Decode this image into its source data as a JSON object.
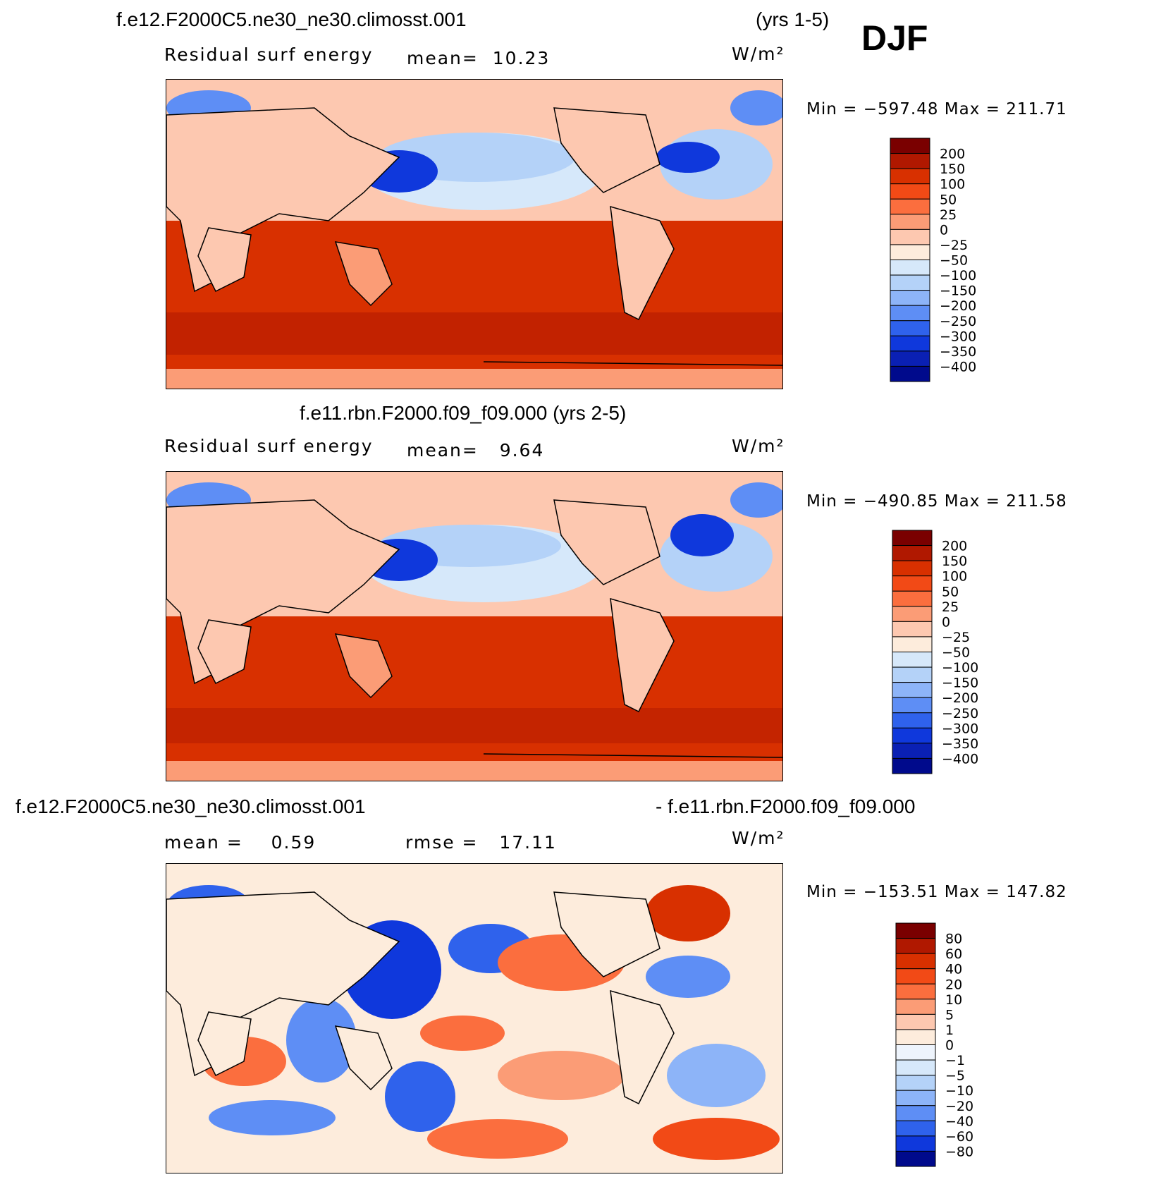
{
  "season": "DJF",
  "units": "W/m²",
  "panels": [
    {
      "header_left": "f.e12.F2000C5.ne30_ne30.climosst.001",
      "header_right": "(yrs 1-5)",
      "variable": "Residual surf energy",
      "mean_label": "mean=",
      "mean": "10.23",
      "min_label": "Min =",
      "min": "−597.48",
      "max_label": "Max =",
      "max": "211.71",
      "levels": [
        "200",
        "150",
        "100",
        "50",
        "25",
        "0",
        "−25",
        "−50",
        "−100",
        "−150",
        "−200",
        "−250",
        "−300",
        "−350",
        "−400"
      ]
    },
    {
      "header": "f.e11.rbn.F2000.f09_f09.000 (yrs 2-5)",
      "variable": "Residual surf energy",
      "mean_label": "mean=",
      "mean": "9.64",
      "min_label": "Min =",
      "min": "−490.85",
      "max_label": "Max =",
      "max": "211.58",
      "levels": [
        "200",
        "150",
        "100",
        "50",
        "25",
        "0",
        "−25",
        "−50",
        "−100",
        "−150",
        "−200",
        "−250",
        "−300",
        "−350",
        "−400"
      ]
    },
    {
      "header_left": "f.e12.F2000C5.ne30_ne30.climosst.001",
      "header_right": "- f.e11.rbn.F2000.f09_f09.000",
      "mean_label": "mean =",
      "mean": "0.59",
      "rmse_label": "rmse =",
      "rmse": "17.11",
      "min_label": "Min =",
      "min": "−153.51",
      "max_label": "Max =",
      "max": "147.82",
      "levels": [
        "80",
        "60",
        "40",
        "20",
        "10",
        "5",
        "1",
        "0",
        "−1",
        "−5",
        "−10",
        "−20",
        "−40",
        "−60",
        "−80"
      ]
    }
  ],
  "colors": {
    "abs_scale": [
      "#7a0000",
      "#b01800",
      "#d83000",
      "#f24a16",
      "#fb6e3e",
      "#fb9c76",
      "#fdc8b0",
      "#fdecdc",
      "#d6e8fa",
      "#b4d2f8",
      "#8db4f8",
      "#5e8ef5",
      "#2f62ec",
      "#0f38dc",
      "#0a20b4",
      "#000a8c"
    ],
    "diff_scale": [
      "#7a0000",
      "#b01800",
      "#d83000",
      "#f24a16",
      "#fb6e3e",
      "#fb9c76",
      "#fdc8b0",
      "#fdecdc",
      "#eef4fc",
      "#d6e8fa",
      "#b4d2f8",
      "#8db4f8",
      "#5e8ef5",
      "#2f62ec",
      "#0f38dc",
      "#000a8c"
    ]
  },
  "chart_data": [
    {
      "type": "heatmap",
      "title": "f.e12.F2000C5.ne30_ne30.climosst.001 (yrs 1-5)",
      "variable": "Residual surf energy",
      "units": "W/m²",
      "mean": 10.23,
      "min": -597.48,
      "max": 211.71,
      "contour_levels": [
        200,
        150,
        100,
        50,
        25,
        0,
        -25,
        -50,
        -100,
        -150,
        -200,
        -250,
        -300,
        -350,
        -400
      ]
    },
    {
      "type": "heatmap",
      "title": "f.e11.rbn.F2000.f09_f09.000 (yrs 2-5)",
      "variable": "Residual surf energy",
      "units": "W/m²",
      "mean": 9.64,
      "min": -490.85,
      "max": 211.58,
      "contour_levels": [
        200,
        150,
        100,
        50,
        25,
        0,
        -25,
        -50,
        -100,
        -150,
        -200,
        -250,
        -300,
        -350,
        -400
      ]
    },
    {
      "type": "heatmap",
      "title": "f.e12.F2000C5.ne30_ne30.climosst.001 - f.e11.rbn.F2000.f09_f09.000",
      "units": "W/m²",
      "mean": 0.59,
      "rmse": 17.11,
      "min": -153.51,
      "max": 147.82,
      "contour_levels": [
        80,
        60,
        40,
        20,
        10,
        5,
        1,
        0,
        -1,
        -5,
        -10,
        -20,
        -40,
        -60,
        -80
      ]
    }
  ]
}
